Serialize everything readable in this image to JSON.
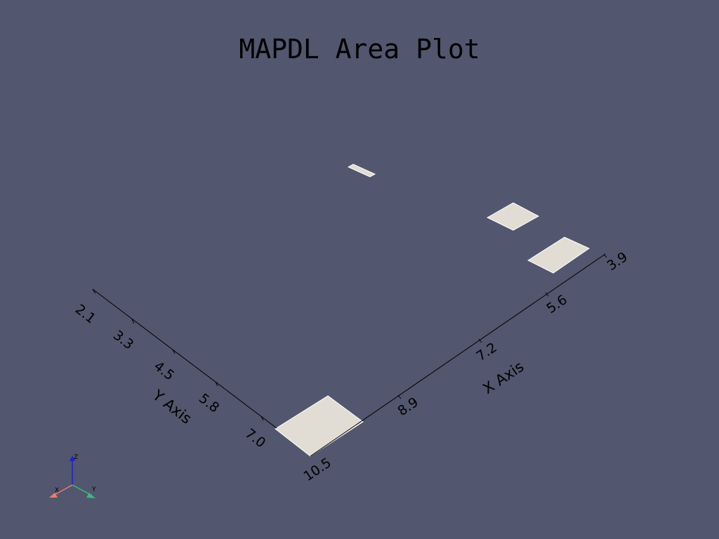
{
  "plot": {
    "title": "MAPDL Area Plot",
    "background_color": "#52566e",
    "area_color": "#e2ddd4"
  },
  "axes": {
    "x_axis": {
      "title": "X Axis",
      "ticks": [
        "10.5",
        "8.9",
        "7.2",
        "5.6",
        "3.9"
      ]
    },
    "y_axis": {
      "title": "Y Axis",
      "ticks": [
        "2.1",
        "3.3",
        "4.5",
        "5.8",
        "7.0"
      ]
    }
  },
  "orientation_triad": {
    "x_label": "X",
    "y_label": "Y",
    "z_label": "Z",
    "x_color": "#e8806a",
    "y_color": "#3fb87a",
    "z_color": "#2020d0"
  },
  "chart_data": {
    "type": "scatter",
    "title": "MAPDL Area Plot",
    "xlabel": "X Axis",
    "ylabel": "Y Axis",
    "x_ticks": [
      10.5,
      8.9,
      7.2,
      5.6,
      3.9
    ],
    "y_ticks": [
      2.1,
      3.3,
      4.5,
      5.8,
      7.0
    ],
    "areas_count": 4
  }
}
